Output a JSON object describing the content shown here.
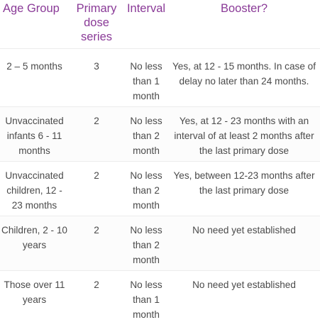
{
  "table": {
    "headers": [
      "Age Group",
      "Primary dose series",
      "Interval",
      "Booster?"
    ],
    "rows": [
      {
        "age_group": "2 – 5 months",
        "primary": "3",
        "interval": "No less than 1 month",
        "booster": "Yes, at 12 - 15 months. In case of delay no later than 24 months."
      },
      {
        "age_group": "Unvaccinated infants 6 - 11 months",
        "primary": "2",
        "interval": "No less than 2 month",
        "booster": "Yes, at 12 - 23 months with an interval of at least 2 months after the last primary dose"
      },
      {
        "age_group": "Unvaccinated children, 12 - 23 months",
        "primary": "2",
        "interval": "No less than 2 month",
        "booster": "Yes, between 12-23 months after the last primary dose"
      },
      {
        "age_group": "Children, 2 - 10 years",
        "primary": "2",
        "interval": "No less than 2 month",
        "booster": "No need yet established"
      },
      {
        "age_group": "Those over 11 years",
        "primary": "2",
        "interval": "No less than 1 month",
        "booster": "No need yet established"
      }
    ]
  },
  "colors": {
    "header_text": "#8a3a97",
    "body_text": "#4a4a4a"
  }
}
